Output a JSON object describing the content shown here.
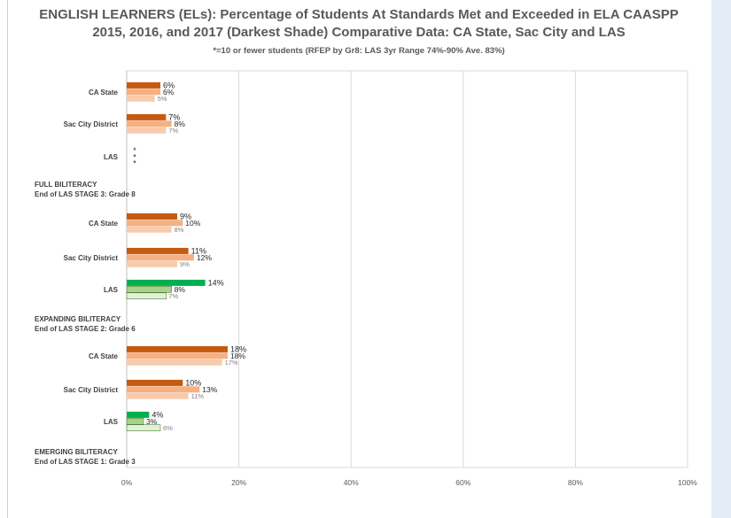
{
  "chart_data": {
    "type": "bar",
    "orientation": "horizontal",
    "title_lines": [
      "ENGLISH LEARNERS (ELs): Percentage of Students At Standards Met and Exceeded in ELA CAASPP",
      "2015, 2016, and 2017 (Darkest Shade) Comparative Data: CA State, Sac City and LAS"
    ],
    "subtitle": "*=10 or fewer students (RFEP by Gr8: LAS 3yr Range 74%-90% Ave. 83%)",
    "xlim": [
      0,
      100
    ],
    "x_ticks": [
      "0%",
      "20%",
      "40%",
      "60%",
      "80%",
      "100%"
    ],
    "grid": true,
    "legend": "none",
    "colors": {
      "orange": [
        "#c55a11",
        "#f4b183",
        "#f8cbad"
      ],
      "green": [
        "#00b050",
        "#a9d18e",
        "#e2f0d9"
      ]
    },
    "groups": [
      {
        "label": "CA State",
        "colorset": "orange",
        "values": [
          6,
          6,
          5
        ],
        "value_labels": [
          "6%",
          "6%",
          "5%"
        ]
      },
      {
        "label": "Sac City District",
        "colorset": "orange",
        "values": [
          7,
          8,
          7
        ],
        "value_labels": [
          "7%",
          "8%",
          "7%"
        ]
      },
      {
        "label": "LAS",
        "colorset": "green",
        "values": [
          null,
          null,
          null
        ],
        "value_labels": [
          "*",
          "*",
          "*"
        ]
      },
      {
        "label": "FULL BILITERACY\nEnd of LAS STAGE 3: Grade 8",
        "header": true
      },
      {
        "label": "CA State",
        "colorset": "orange",
        "values": [
          9,
          10,
          8
        ],
        "value_labels": [
          "9%",
          "10%",
          "8%"
        ]
      },
      {
        "label": "Sac City District",
        "colorset": "orange",
        "values": [
          11,
          12,
          9
        ],
        "value_labels": [
          "11%",
          "12%",
          "9%"
        ]
      },
      {
        "label": "LAS",
        "colorset": "green",
        "values": [
          14,
          8,
          7
        ],
        "value_labels": [
          "14%",
          "8%",
          "7%"
        ]
      },
      {
        "label": "EXPANDING BILITERACY\nEnd of LAS STAGE 2: Grade 6",
        "header": true
      },
      {
        "label": "CA State",
        "colorset": "orange",
        "values": [
          18,
          18,
          17
        ],
        "value_labels": [
          "18%",
          "18%",
          "17%"
        ]
      },
      {
        "label": "Sac City District",
        "colorset": "orange",
        "values": [
          10,
          13,
          11
        ],
        "value_labels": [
          "10%",
          "13%",
          "11%"
        ]
      },
      {
        "label": "LAS",
        "colorset": "green",
        "values": [
          4,
          3,
          6
        ],
        "value_labels": [
          "4%",
          "3%",
          "6%"
        ]
      },
      {
        "label": "EMERGING BILITERACY\nEnd of LAS STAGE 1: Grade 3",
        "header": true
      }
    ]
  }
}
